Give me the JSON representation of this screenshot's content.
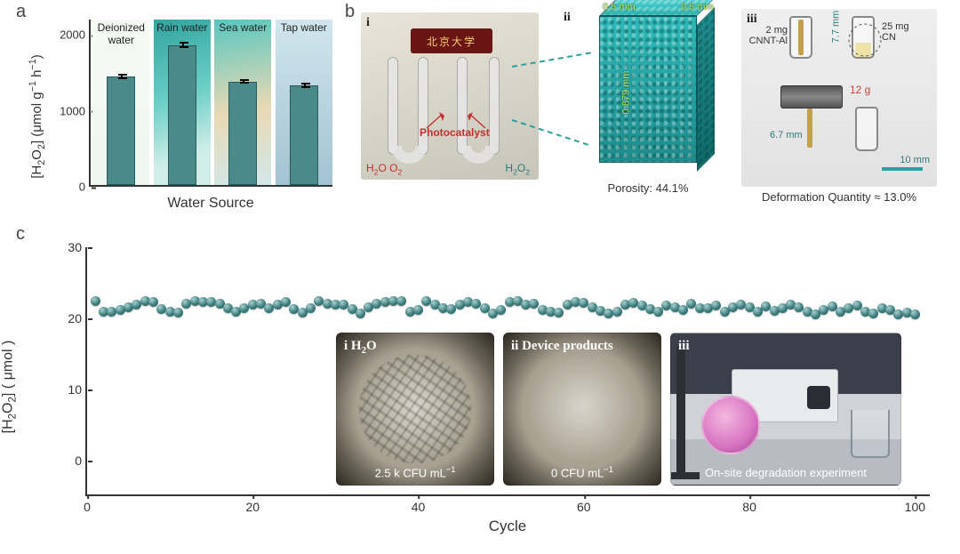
{
  "panel_labels": {
    "a": "a",
    "b": "b",
    "c": "c"
  },
  "panel_a": {
    "type": "bar",
    "ylabel_html": "[H<sub>2</sub>O<sub>2</sub>] (μmol g<sup>−1</sup> h<sup>−1</sup>)",
    "xlabel": "Water Source",
    "ylim": [
      0,
      2200
    ],
    "yticks": [
      0,
      1000,
      2000
    ],
    "bar_color": "#4a8a8a",
    "categories": [
      "Deionized\nwater",
      "Rain water",
      "Sea water",
      "Tap water"
    ],
    "values": [
      1430,
      1840,
      1360,
      1310
    ],
    "errors": [
      35,
      40,
      30,
      35
    ],
    "title_fontsize": 12,
    "bg_gradients": [
      "linear-gradient(#f6faf6,#eef5ee)",
      "linear-gradient(160deg,#2aa6a0 0%,#5fd0c8 45%,#cdeee8 80%)",
      "linear-gradient(170deg,#4fc9c0 0%,#ead9b0 55%,#cfe8ea 100%)",
      "linear-gradient(#cfe6ef,#9fc4d4)"
    ]
  },
  "panel_b": {
    "i": {
      "plaque_text": "北京大学",
      "inlet_label_html": "H<sub>2</sub>O  O<sub>2</sub>",
      "outlet_label_html": "H<sub>2</sub>O<sub>2</sub>",
      "catalyst_label": "Photocatalyst",
      "roman": "i"
    },
    "ii": {
      "dim_top1": "0.5 mm",
      "dim_top2": "0.5 mm",
      "dim_height": "0.879 mm",
      "porosity_label": "Porosity: 44.1%",
      "cuboid_color": "#29b0b0",
      "roman": "ii"
    },
    "iii": {
      "left_label": "2 mg\nCNNT-Al",
      "right_label": "25 mg\nCN",
      "height_top": "7.7 mm",
      "mass_label": "12 g",
      "height_bottom": "6.7 mm",
      "scale_label": "10 mm",
      "deform_label": "Deformation Quantity ≈ 13.0%",
      "roman": "iii"
    }
  },
  "panel_c": {
    "type": "scatter",
    "ylabel_html": "[H<sub>2</sub>O<sub>2</sub>] ( μmol )",
    "xlabel": "Cycle",
    "ylim": [
      -5,
      30
    ],
    "yticks": [
      0,
      10,
      20,
      30
    ],
    "xlim": [
      0,
      102
    ],
    "xticks": [
      0,
      20,
      40,
      60,
      80,
      100
    ],
    "marker_color": "#3f7f7f",
    "values": [
      22.4,
      20.9,
      21.0,
      21.2,
      21.6,
      22.0,
      22.5,
      22.3,
      21.3,
      21.0,
      20.8,
      22.1,
      22.4,
      22.3,
      22.3,
      22.1,
      21.4,
      20.9,
      21.4,
      22.0,
      22.1,
      21.5,
      21.9,
      22.3,
      21.3,
      20.8,
      21.5,
      22.4,
      22.1,
      21.9,
      22.0,
      21.3,
      20.7,
      21.6,
      22.1,
      22.3,
      22.4,
      22.5,
      20.9,
      21.2,
      22.4,
      22.0,
      21.4,
      21.3,
      22.0,
      22.3,
      22.1,
      21.5,
      20.7,
      21.2,
      22.3,
      22.4,
      22.0,
      22.1,
      21.2,
      21.0,
      20.8,
      21.9,
      22.3,
      22.2,
      21.6,
      21.1,
      20.7,
      21.0,
      21.9,
      22.2,
      21.8,
      21.3,
      21.0,
      21.8,
      21.6,
      21.2,
      22.1,
      21.5,
      21.4,
      21.8,
      21.0,
      21.6,
      22.0,
      21.6,
      21.0,
      21.7,
      21.1,
      21.4,
      22.0,
      21.6,
      21.0,
      20.6,
      21.2,
      21.7,
      20.9,
      21.5,
      21.8,
      21.0,
      20.7,
      21.5,
      21.2,
      20.6,
      20.8,
      20.6
    ],
    "insets": {
      "i": {
        "title_html": "i  H<sub>2</sub>O",
        "caption_html": "2.5 k CFU mL<sup>−1</sup>",
        "fg": "#ffffff"
      },
      "ii": {
        "title": "ii  Device products",
        "caption_html": "0 CFU mL<sup>−1</sup>",
        "fg": "#ffffff"
      },
      "iii": {
        "title": "iii",
        "caption": "On-site degradation experiment",
        "fg": "#ffffff"
      }
    }
  },
  "colors": {
    "teal": "#2f8a8a",
    "axis": "#333333",
    "lime": "#bde24a",
    "anno_red": "#d04040"
  }
}
